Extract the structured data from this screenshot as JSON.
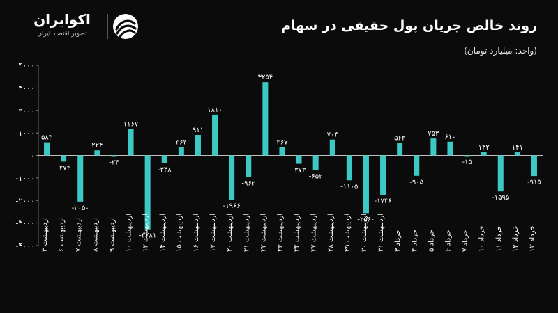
{
  "logo": {
    "name": "اکوایران",
    "subtitle": "تصویر اقتصاد ایران",
    "icon": "ecoiran-logo-icon"
  },
  "chart_data": {
    "type": "bar",
    "title": "روند خالص جریان پول حقیقی در سهام",
    "subtitle": "(واحد: میلیارد تومان)",
    "xlabel": "",
    "ylabel": "",
    "ylim": [
      -4000,
      4000
    ],
    "y_ticks": [
      4000,
      3000,
      2000,
      1000,
      0,
      -1000,
      -2000,
      -3000,
      -4000
    ],
    "y_tick_labels": [
      "۴۰۰۰",
      "۳۰۰۰",
      "۲۰۰۰",
      "۱۰۰۰",
      "۰",
      "-۱۰۰۰",
      "-۲۰۰۰",
      "-۳۰۰۰",
      "-۴۰۰۰"
    ],
    "grid": false,
    "bar_color": "#3cc9c4",
    "categories": [
      "اردیبهشت ۳",
      "اردیبهشت ۶",
      "اردیبهشت ۷",
      "اردیبهشت ۸",
      "اردیبهشت ۹",
      "اردیبهشت ۱۰",
      "اردیبهشت ۱۳",
      "اردیبهشت ۱۴",
      "اردیبهشت ۱۵",
      "اردیبهشت ۱۶",
      "اردیبهشت ۱۷",
      "اردیبهشت ۲۰",
      "اردیبهشت ۲۱",
      "اردیبهشت ۲۲",
      "اردیبهشت ۲۳",
      "اردیبهشت ۲۴",
      "اردیبهشت ۲۷",
      "اردیبهشت ۲۸",
      "اردیبهشت ۲۹",
      "اردیبهشت ۳۰",
      "اردیبهشت ۳۱",
      "خرداد ۳",
      "خرداد ۴",
      "خرداد ۵",
      "خرداد ۶",
      "خرداد ۷",
      "خرداد ۱۰",
      "خرداد ۱۱",
      "خرداد ۱۲",
      "خرداد ۱۳"
    ],
    "values": [
      583,
      -274,
      -2050,
      224,
      -24,
      1167,
      -3281,
      -348,
      364,
      911,
      1810,
      -1966,
      -962,
      3254,
      367,
      -373,
      -652,
      704,
      -1105,
      -2560,
      -1746,
      563,
      -905,
      753,
      610,
      -15,
      142,
      -1595,
      141,
      -915
    ],
    "value_labels": [
      "۵۸۳",
      "-۲۷۴",
      "-۲۰۵۰",
      "۲۲۴",
      "-۲۴",
      "۱۱۶۷",
      "-۳۲۸۱",
      "-۳۴۸",
      "۳۶۴",
      "۹۱۱",
      "۱۸۱۰",
      "-۱۹۶۶",
      "-۹۶۲",
      "۳۲۵۴",
      "۳۶۷",
      "-۳۷۳",
      "-۶۵۲",
      "۷۰۴",
      "-۱۱۰۵",
      "-۲۵۶۰",
      "-۱۷۴۶",
      "۵۶۳",
      "-۹۰۵",
      "۷۵۳",
      "۶۱۰",
      "-۱۵",
      "۱۴۲",
      "-۱۵۹۵",
      "۱۴۱",
      "-۹۱۵"
    ]
  }
}
